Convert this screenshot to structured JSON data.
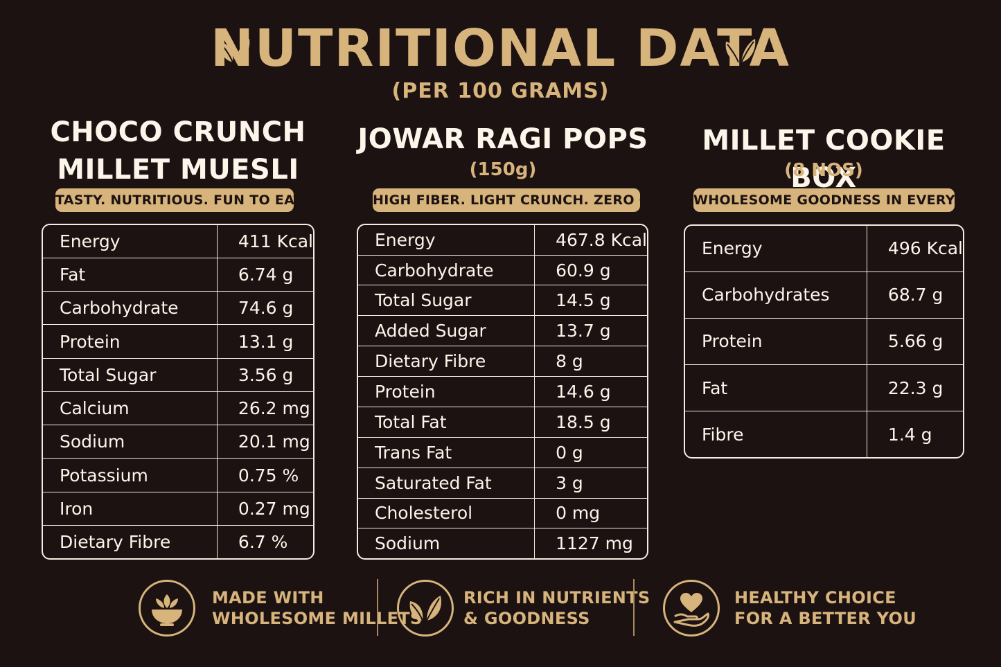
{
  "header": {
    "title": "NUTRITIONAL DATA",
    "subtitle": "(PER 100 GRAMS)"
  },
  "products": [
    {
      "name_line1": "CHOCO CRUNCH",
      "name_line2": "MILLET MUESLI",
      "tagline": "TASTY. NUTRITIOUS. FUN TO EAT",
      "rows": [
        {
          "label": "Energy",
          "value": "411 Kcal"
        },
        {
          "label": "Fat",
          "value": "6.74 g"
        },
        {
          "label": "Carbohydrate",
          "value": "74.6 g"
        },
        {
          "label": "Protein",
          "value": "13.1 g"
        },
        {
          "label": "Total Sugar",
          "value": "3.56 g"
        },
        {
          "label": "Calcium",
          "value": "26.2 mg"
        },
        {
          "label": "Sodium",
          "value": "20.1 mg"
        },
        {
          "label": "Potassium",
          "value": "0.75 %"
        },
        {
          "label": "Iron",
          "value": "0.27 mg"
        },
        {
          "label": "Dietary Fibre",
          "value": "6.7 %"
        }
      ]
    },
    {
      "name_line1": "JOWAR RAGI POPS",
      "size": "(150g)",
      "tagline": "HIGH FIBER. LIGHT CRUNCH. ZERO GUILT",
      "rows": [
        {
          "label": "Energy",
          "value": "467.8 Kcal"
        },
        {
          "label": "Carbohydrate",
          "value": "60.9 g"
        },
        {
          "label": "Total Sugar",
          "value": "14.5 g"
        },
        {
          "label": "Added Sugar",
          "value": "13.7 g"
        },
        {
          "label": "Dietary Fibre",
          "value": "8 g"
        },
        {
          "label": "Protein",
          "value": "14.6 g"
        },
        {
          "label": "Total Fat",
          "value": "18.5 g"
        },
        {
          "label": "Trans Fat",
          "value": "0 g"
        },
        {
          "label": "Saturated Fat",
          "value": "3 g"
        },
        {
          "label": "Cholesterol",
          "value": "0 mg"
        },
        {
          "label": "Sodium",
          "value": "1127 mg"
        }
      ]
    },
    {
      "name_line1": "MILLET COOKIE BOX",
      "size": "(8 NOS)",
      "tagline": "WHOLESOME GOODNESS IN EVERY BITE",
      "rows": [
        {
          "label": "Energy",
          "value": "496 Kcal"
        },
        {
          "label": "Carbohydrates",
          "value": "68.7 g"
        },
        {
          "label": "Protein",
          "value": "5.66 g"
        },
        {
          "label": "Fat",
          "value": "22.3 g"
        },
        {
          "label": "Fibre",
          "value": "1.4 g"
        }
      ]
    }
  ],
  "features": [
    {
      "icon": "bowl-icon",
      "line1": "MADE WITH",
      "line2": "WHOLESOME MILLETS"
    },
    {
      "icon": "leaf-icon",
      "line1": "RICH IN NUTRIENTS",
      "line2": "& GOODNESS"
    },
    {
      "icon": "heart-hand-icon",
      "line1": "HEALTHY CHOICE",
      "line2": "FOR A BETTER YOU"
    }
  ],
  "colors": {
    "background": "#1d1212",
    "accent_gold": "#d7b47c",
    "text_light": "#fbf5ea"
  }
}
